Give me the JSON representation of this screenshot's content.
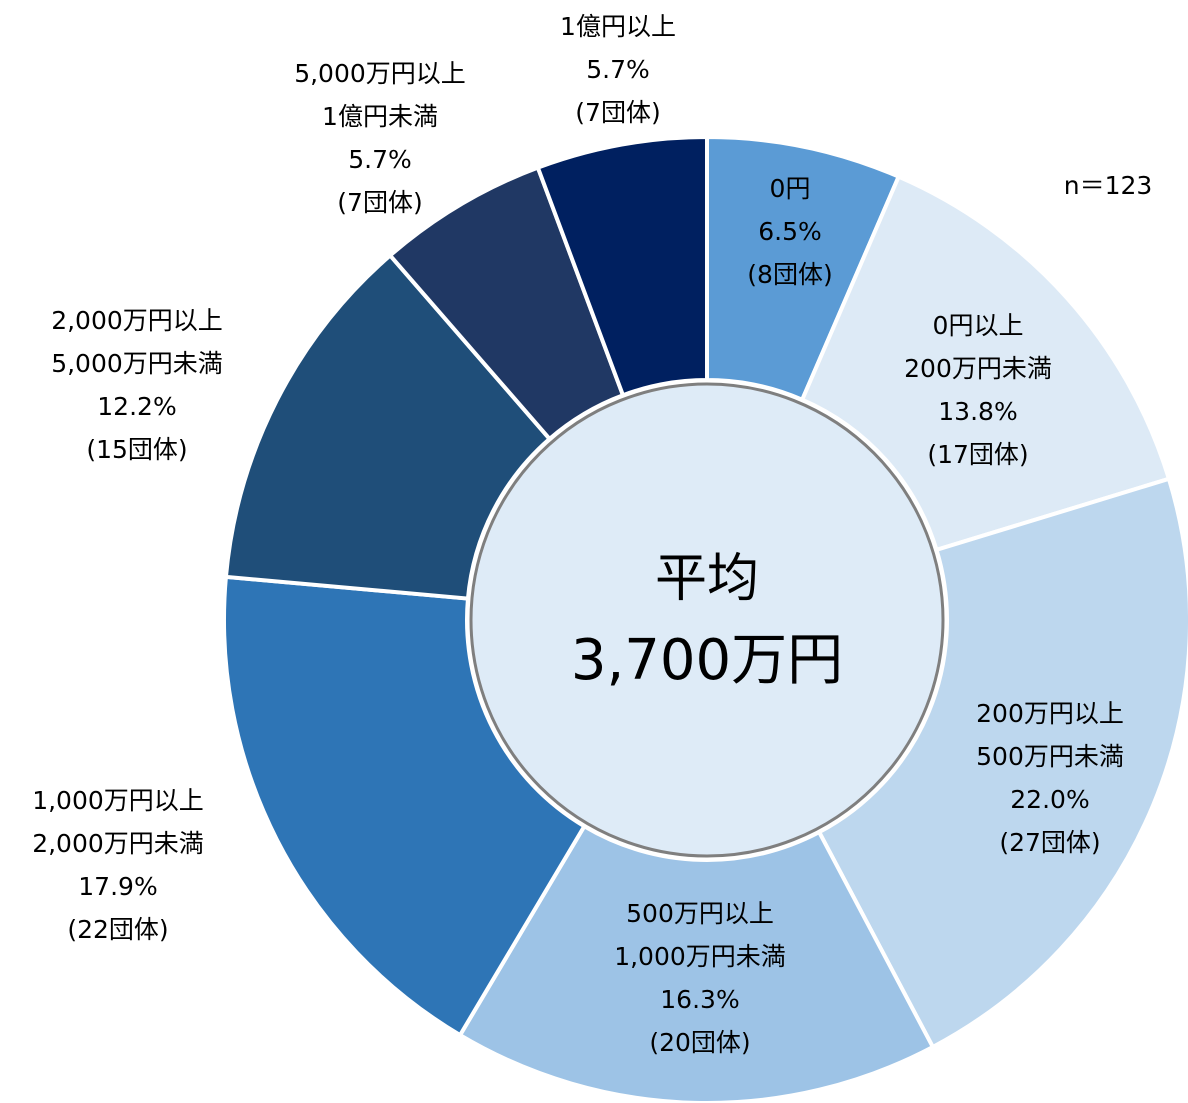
{
  "chart_data": {
    "type": "donut",
    "categories": [
      [
        "0円"
      ],
      [
        "0円以上",
        "200万円未満"
      ],
      [
        "200万円以上",
        "500万円未満"
      ],
      [
        "500万円以上",
        "1,000万円未満"
      ],
      [
        "1,000万円以上",
        "2,000万円未満"
      ],
      [
        "2,000万円以上",
        "5,000万円未満"
      ],
      [
        "5,000万円以上",
        "1億円未満"
      ],
      [
        "1億円以上"
      ]
    ],
    "values": [
      6.5,
      13.8,
      22.0,
      16.3,
      17.9,
      12.2,
      5.7,
      5.7
    ],
    "value_labels": [
      "6.5%",
      "13.8%",
      "22.0%",
      "16.3%",
      "17.9%",
      "12.2%",
      "5.7%",
      "5.7%"
    ],
    "count_labels": [
      "(8団体)",
      "(17団体)",
      "(27団体)",
      "(20団体)",
      "(22団体)",
      "(15団体)",
      "(7団体)",
      "(7団体)"
    ],
    "colors": [
      "#5b9bd5",
      "#ddeaf6",
      "#bdd7ee",
      "#9dc3e6",
      "#2e75b6",
      "#1f4e79",
      "#203864",
      "#002060"
    ],
    "center_text": [
      "平均",
      "3,700万円"
    ],
    "annotation": "n＝123"
  }
}
